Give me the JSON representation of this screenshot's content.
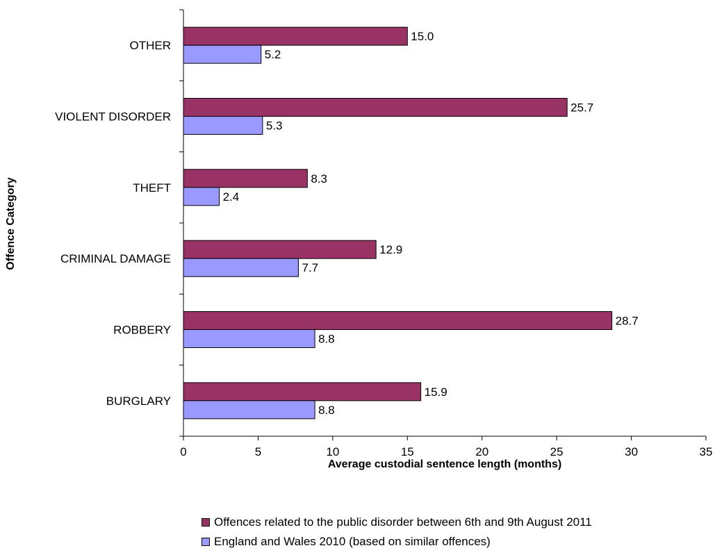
{
  "chart_data": {
    "type": "bar",
    "orientation": "horizontal",
    "title": "",
    "xlabel": "Average custodial sentence length (months)",
    "ylabel": "Offence Category",
    "categories": [
      "OTHER",
      "VIOLENT DISORDER",
      "THEFT",
      "CRIMINAL DAMAGE",
      "ROBBERY",
      "BURGLARY"
    ],
    "series": [
      {
        "name": "Offences related to the public disorder between 6th and 9th August 2011",
        "color": "#993366",
        "values": [
          15.0,
          25.7,
          8.3,
          12.9,
          28.7,
          15.9
        ]
      },
      {
        "name": "England and Wales 2010 (based on similar offences)",
        "color": "#9999ff",
        "values": [
          5.2,
          5.3,
          2.4,
          7.7,
          8.8,
          8.8
        ]
      }
    ],
    "xlim": [
      0,
      35
    ],
    "xticks": [
      0,
      5,
      10,
      15,
      20,
      25,
      30,
      35
    ],
    "grid": false,
    "legend_position": "bottom"
  }
}
